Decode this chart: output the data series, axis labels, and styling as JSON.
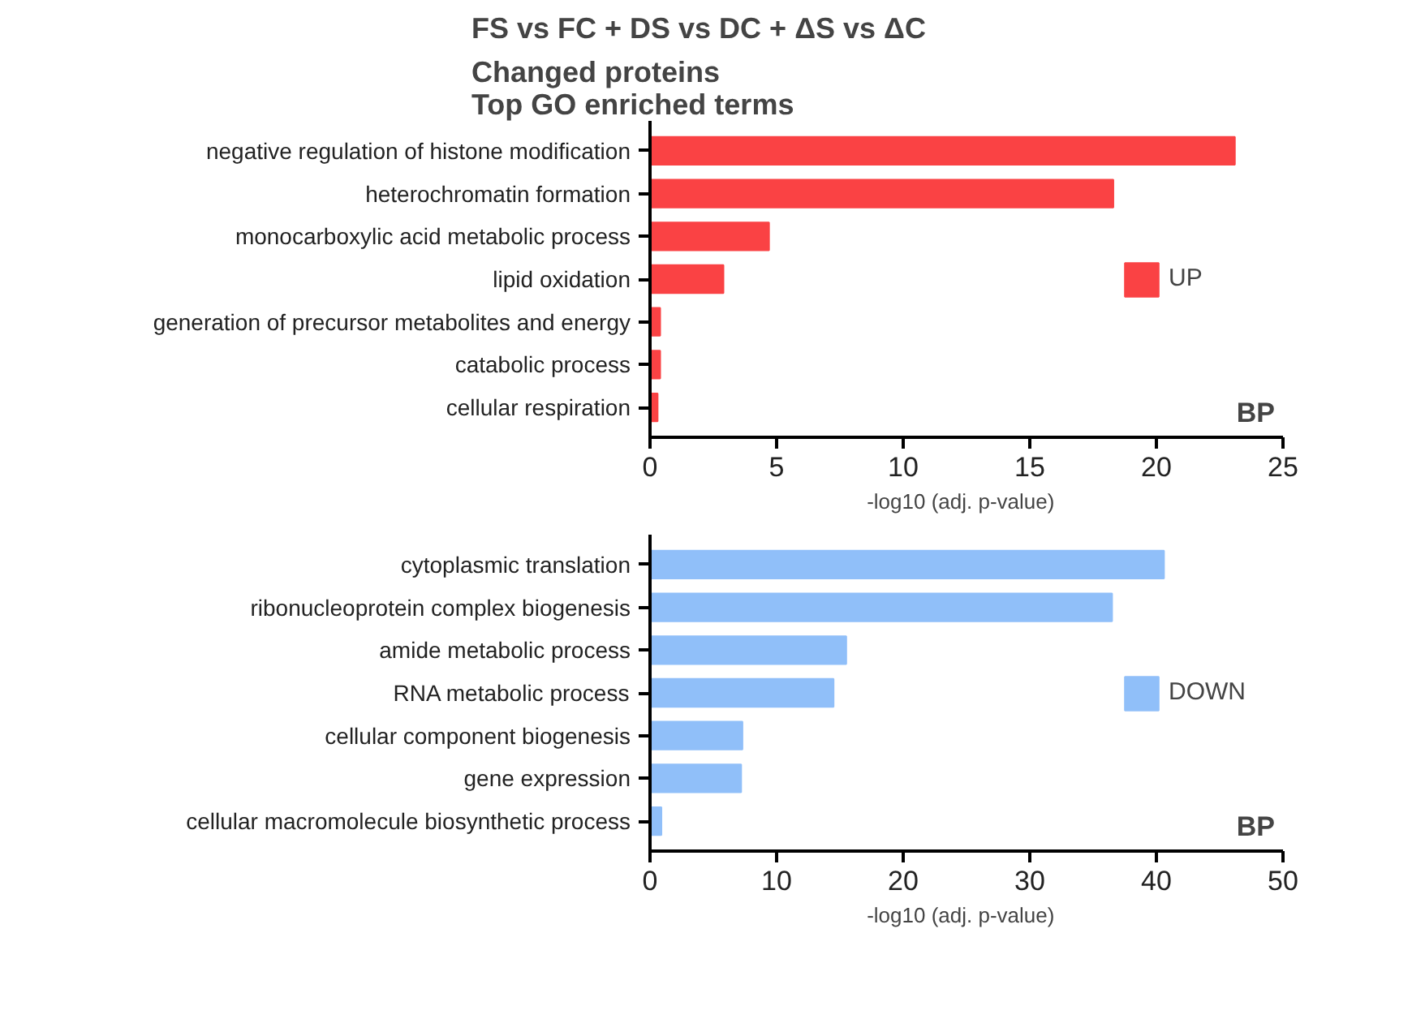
{
  "chart_data": [
    {
      "type": "bar",
      "orientation": "horizontal",
      "title": "FS vs FC + DS vs DC + ΔS vs ΔC",
      "subtitle": "Changed proteins\nTop GO enriched terms",
      "categories": [
        "negative regulation of histone modification",
        "heterochromatin formation",
        "monocarboxylic acid metabolic process",
        "lipid oxidation",
        "generation of precursor metabolites and energy",
        "catabolic process",
        "cellular respiration"
      ],
      "series": [
        {
          "name": "UP",
          "color": "#fa4244",
          "values": [
            23.1,
            18.3,
            4.7,
            2.9,
            0.4,
            0.4,
            0.3
          ]
        }
      ],
      "xlabel": "-log10  (adj.  p-value)",
      "xlim": [
        0,
        25
      ],
      "xticks": [
        0,
        5,
        10,
        15,
        20,
        25
      ],
      "grid": false,
      "legend": "right",
      "annotations": [
        "BP"
      ]
    },
    {
      "type": "bar",
      "orientation": "horizontal",
      "categories": [
        "cytoplasmic translation",
        "ribonucleoprotein complex biogenesis",
        "amide metabolic process",
        "RNA metabolic process",
        "cellular component biogenesis",
        "gene expression",
        "cellular macromolecule biosynthetic process"
      ],
      "series": [
        {
          "name": "DOWN",
          "color": "#90bff9",
          "values": [
            40.6,
            36.5,
            15.5,
            14.5,
            7.3,
            7.2,
            0.9
          ]
        }
      ],
      "xlabel": "-log10  (adj.  p-value)",
      "xlim": [
        0,
        50
      ],
      "xticks": [
        0,
        10,
        20,
        30,
        40,
        50
      ],
      "grid": false,
      "legend": "right",
      "annotations": [
        "BP"
      ]
    }
  ]
}
